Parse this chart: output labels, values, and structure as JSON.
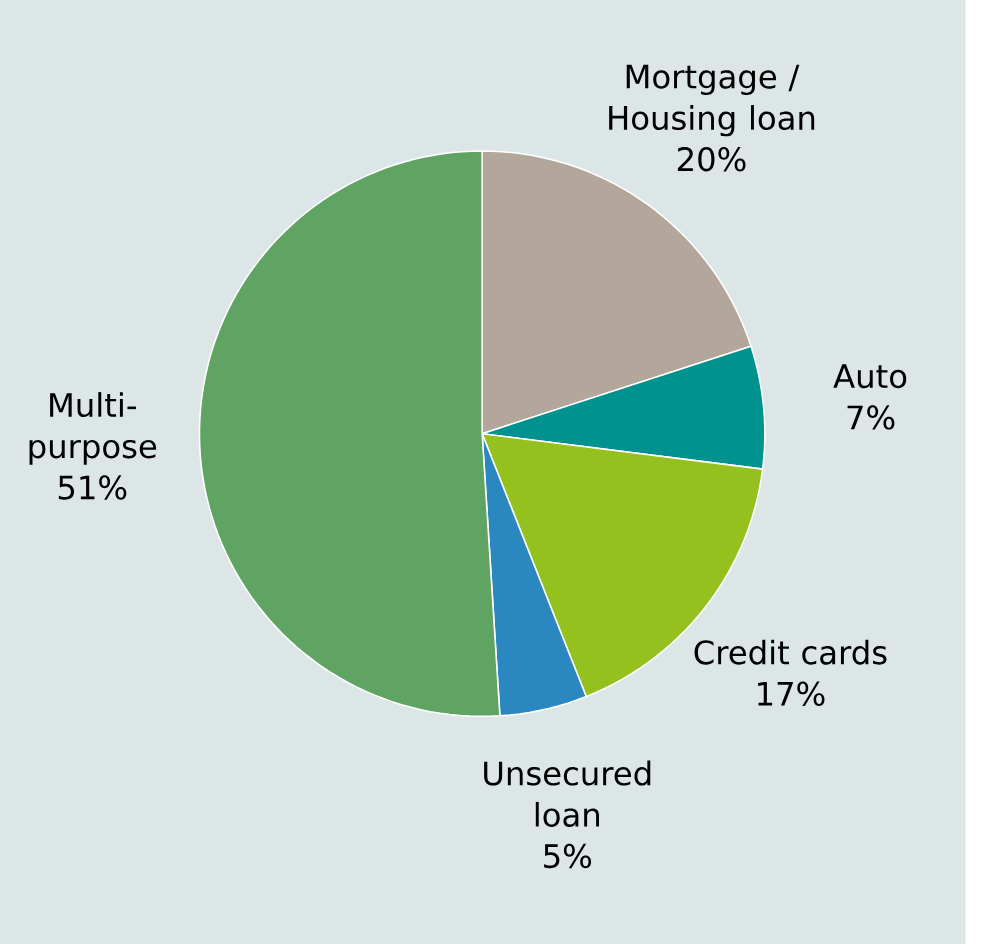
{
  "chart_data": {
    "type": "pie",
    "categories": [
      "Mortgage / Housing loan",
      "Auto",
      "Credit cards",
      "Unsecured loan",
      "Multi-purpose"
    ],
    "values": [
      20,
      7,
      17,
      5,
      51
    ],
    "value_labels": [
      "20%",
      "7%",
      "17%",
      "5%",
      "51%"
    ],
    "colors": [
      "#b3a69a",
      "#00928f",
      "#95c11f",
      "#2a87c0",
      "#5fa463"
    ]
  }
}
